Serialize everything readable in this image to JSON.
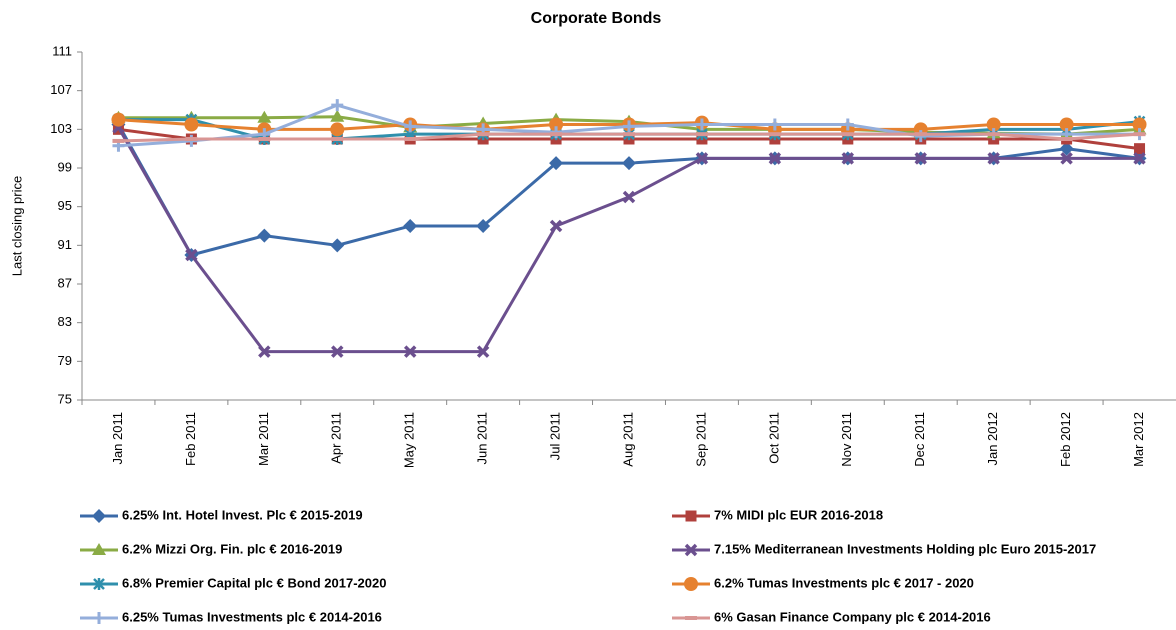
{
  "chart_data": {
    "type": "line",
    "title": "Corporate Bonds",
    "y_label": "Last closing price",
    "categories": [
      "Jan 2011",
      "Feb 2011",
      "Mar 2011",
      "Apr 2011",
      "May 2011",
      "Jun 2011",
      "Jul 2011",
      "Aug 2011",
      "Sep 2011",
      "Oct 2011",
      "Nov 2011",
      "Dec 2011",
      "Jan 2012",
      "Feb 2012",
      "Mar 2012"
    ],
    "ylim": [
      75,
      111
    ],
    "yticks": [
      75,
      79,
      83,
      87,
      91,
      95,
      99,
      103,
      107,
      111
    ],
    "grid": false,
    "series": [
      {
        "name": "6.25% Int. Hotel Invest. Plc € 2015-2019",
        "color": "#3b6aa8",
        "marker": "diamond",
        "values": [
          103.5,
          90,
          92,
          91,
          93,
          93,
          99.5,
          99.5,
          100,
          100,
          100,
          100,
          100,
          101,
          100
        ]
      },
      {
        "name": "7% MIDI plc EUR 2016-2018",
        "color": "#b0403c",
        "marker": "square",
        "values": [
          103,
          102,
          102,
          102,
          102,
          102,
          102,
          102,
          102,
          102,
          102,
          102,
          102,
          102,
          101
        ]
      },
      {
        "name": "6.2% Mizzi Org. Fin. plc € 2016-2019",
        "color": "#8aab45",
        "marker": "triangle",
        "values": [
          104.2,
          104.2,
          104.2,
          104.3,
          103.2,
          103.6,
          104,
          103.8,
          103,
          103,
          103,
          102.7,
          102.6,
          102.5,
          103
        ]
      },
      {
        "name": "7.15% Mediterranean Investments Holding plc Euro 2015-2017",
        "color": "#6b4f8e",
        "marker": "x",
        "values": [
          103.2,
          90,
          80,
          80,
          80,
          80,
          93,
          96,
          100,
          100,
          100,
          100,
          100,
          100,
          100
        ]
      },
      {
        "name": "6.8% Premier Capital plc € Bond 2017-2020",
        "color": "#2f8fac",
        "marker": "star",
        "values": [
          104,
          104,
          102,
          102,
          102.5,
          102.5,
          102.5,
          102.5,
          102.5,
          102.5,
          102.5,
          102.5,
          103,
          103,
          103.8
        ]
      },
      {
        "name": "6.2% Tumas Investments plc € 2017 - 2020",
        "color": "#e6812f",
        "marker": "circle",
        "values": [
          104,
          103.5,
          103,
          103,
          103.5,
          103,
          103.5,
          103.5,
          103.7,
          103,
          103,
          103,
          103.5,
          103.5,
          103.5
        ]
      },
      {
        "name": "6.25% Tumas Investments plc € 2014-2016",
        "color": "#94aedb",
        "marker": "plus",
        "values": [
          101.3,
          101.8,
          102.5,
          105.5,
          103.3,
          103,
          102.7,
          103.3,
          103.5,
          103.5,
          103.5,
          102.3,
          102.5,
          102.5,
          102.5
        ]
      },
      {
        "name": "6% Gasan Finance Company plc € 2014-2016",
        "color": "#d99694",
        "marker": "dash",
        "values": [
          101.8,
          102,
          102,
          102,
          102,
          102.5,
          102.5,
          102.5,
          102.5,
          102.5,
          102.5,
          102.5,
          102.5,
          102,
          102.5
        ]
      }
    ]
  }
}
